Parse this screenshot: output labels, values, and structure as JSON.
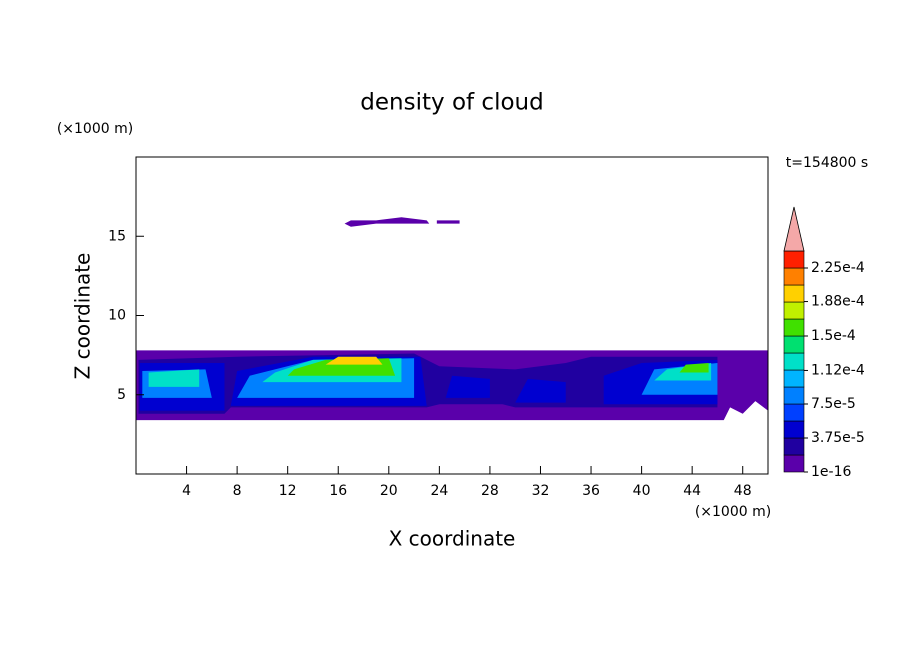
{
  "chart_data": {
    "type": "contour",
    "title": "density of cloud",
    "x_label": "X coordinate",
    "y_label": "Z coordinate",
    "x_unit": "(×1000 m)",
    "y_unit": "(×1000 m)",
    "annotation": "t=154800 s",
    "xlim": [
      0,
      50
    ],
    "ylim": [
      0,
      20
    ],
    "xticks": [
      4,
      8,
      12,
      16,
      20,
      24,
      28,
      32,
      36,
      40,
      44,
      48
    ],
    "yticks": [
      5,
      10,
      15
    ],
    "colorbar": {
      "levels": [
        1e-16,
        1.875e-05,
        3.75e-05,
        5.625e-05,
        7.5e-05,
        9.375e-05,
        0.0001125,
        0.00013125,
        0.00015,
        0.00016875,
        0.0001875,
        0.00020625,
        0.000225,
        0.00024375
      ],
      "colors": [
        "#5a00aa",
        "#2000a0",
        "#0000d0",
        "#0040ff",
        "#0080ff",
        "#00b4ff",
        "#00e0c8",
        "#00e070",
        "#40e000",
        "#c0f000",
        "#ffd000",
        "#ff8000",
        "#ff2000"
      ],
      "extend_color": "#f4a8a8",
      "ticks": [
        1e-16,
        {
          "value": 3.75e-05,
          "label": "3.75e-5"
        },
        {
          "value": 7.5e-05,
          "label": "7.5e-5"
        },
        {
          "value": 0.000112,
          "label": "1.12e-4"
        },
        {
          "value": 0.00015,
          "label": "1.5e-4"
        },
        {
          "value": 0.000188,
          "label": "1.88e-4"
        },
        {
          "value": 0.000225,
          "label": "2.25e-4"
        }
      ]
    },
    "regions": [
      {
        "level": 1e-16,
        "x": [
          16.5,
          17,
          19,
          21,
          23,
          23.2,
          19,
          17
        ],
        "z": [
          15.8,
          16,
          16,
          16.2,
          16,
          15.8,
          15.8,
          15.6
        ]
      },
      {
        "level": 1e-16,
        "x": [
          23.8,
          25.6,
          25.6,
          23.8
        ],
        "z": [
          15.8,
          15.8,
          16,
          16
        ]
      },
      {
        "level": 1e-16,
        "x": [
          0,
          46.5,
          47,
          48,
          49,
          50,
          50,
          0
        ],
        "z": [
          3.4,
          3.4,
          4.2,
          3.8,
          4.6,
          4,
          7.8,
          7.8
        ]
      },
      {
        "level": 1.875e-05,
        "x": [
          0.2,
          7,
          7.5,
          23,
          24,
          29,
          30,
          35,
          36,
          46,
          46,
          36,
          34,
          30,
          24,
          22,
          8,
          0.2
        ],
        "z": [
          3.8,
          3.8,
          4.2,
          4.2,
          4.4,
          4.4,
          4.2,
          4.2,
          4.2,
          4.2,
          7.4,
          7.4,
          7,
          6.6,
          6.8,
          7.6,
          7.4,
          7.2
        ]
      },
      {
        "level": 3.75e-05,
        "x": [
          0.3,
          7,
          7,
          0.3
        ],
        "z": [
          4,
          4,
          7,
          7
        ]
      },
      {
        "level": 3.75e-05,
        "x": [
          7.5,
          23,
          22.5,
          14,
          8
        ],
        "z": [
          4.3,
          4.3,
          7.4,
          7.4,
          6.5
        ]
      },
      {
        "level": 3.75e-05,
        "x": [
          24.5,
          28,
          28,
          25
        ],
        "z": [
          4.8,
          4.8,
          6,
          6.2
        ]
      },
      {
        "level": 3.75e-05,
        "x": [
          30,
          34,
          34,
          31
        ],
        "z": [
          4.5,
          4.5,
          5.8,
          6
        ]
      },
      {
        "level": 3.75e-05,
        "x": [
          37,
          46,
          46,
          40,
          37
        ],
        "z": [
          4.4,
          4.4,
          7.2,
          7,
          6.2
        ]
      },
      {
        "level": 7.5e-05,
        "x": [
          0.5,
          6,
          5.5,
          0.5
        ],
        "z": [
          4.8,
          4.8,
          6.6,
          6.5
        ]
      },
      {
        "level": 7.5e-05,
        "x": [
          8,
          22,
          22,
          14,
          9
        ],
        "z": [
          4.8,
          4.8,
          7.3,
          7.2,
          6.2
        ]
      },
      {
        "level": 7.5e-05,
        "x": [
          40,
          46,
          46,
          41
        ],
        "z": [
          5,
          5,
          7,
          6.6
        ]
      },
      {
        "level": 0.0001125,
        "x": [
          1,
          5,
          5,
          1
        ],
        "z": [
          5.5,
          5.5,
          6.6,
          6.4
        ]
      },
      {
        "level": 0.0001125,
        "x": [
          10,
          21,
          21,
          14,
          11
        ],
        "z": [
          5.8,
          5.8,
          7.3,
          7.2,
          6.4
        ]
      },
      {
        "level": 0.0001125,
        "x": [
          41,
          45.5,
          45.5,
          42
        ],
        "z": [
          5.9,
          5.9,
          7,
          6.6
        ]
      },
      {
        "level": 0.00015,
        "x": [
          12,
          20.5,
          20,
          15,
          12.5
        ],
        "z": [
          6.2,
          6.2,
          7.3,
          7.2,
          6.6
        ]
      },
      {
        "level": 0.00015,
        "x": [
          43,
          45.3,
          45.3,
          43.5
        ],
        "z": [
          6.4,
          6.4,
          7,
          6.9
        ]
      },
      {
        "level": 0.0001875,
        "x": [
          15,
          19.5,
          19,
          16
        ],
        "z": [
          6.9,
          6.9,
          7.4,
          7.4
        ]
      }
    ]
  }
}
